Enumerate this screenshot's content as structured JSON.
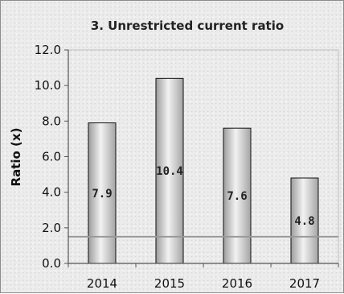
{
  "chart_data": {
    "type": "bar",
    "title": "3. Unrestricted current ratio",
    "ylabel": "Ratio (x)",
    "xlabel": "",
    "categories": [
      "2014",
      "2015",
      "2016",
      "2017"
    ],
    "values": [
      7.9,
      10.4,
      7.6,
      4.8
    ],
    "data_labels": [
      "7.9",
      "10.4",
      "7.6",
      "4.8"
    ],
    "ylim": [
      0,
      12
    ],
    "yticks": [
      "0.0",
      "2.0",
      "4.0",
      "6.0",
      "8.0",
      "10.0",
      "12.0"
    ],
    "reference_line": 1.5,
    "grid": false,
    "legend": "none",
    "colors": {
      "bar_fill": "#c8c8c8",
      "bar_edge": "#111111",
      "reference_line": "#9a9a9a",
      "axis": "#555555"
    }
  }
}
